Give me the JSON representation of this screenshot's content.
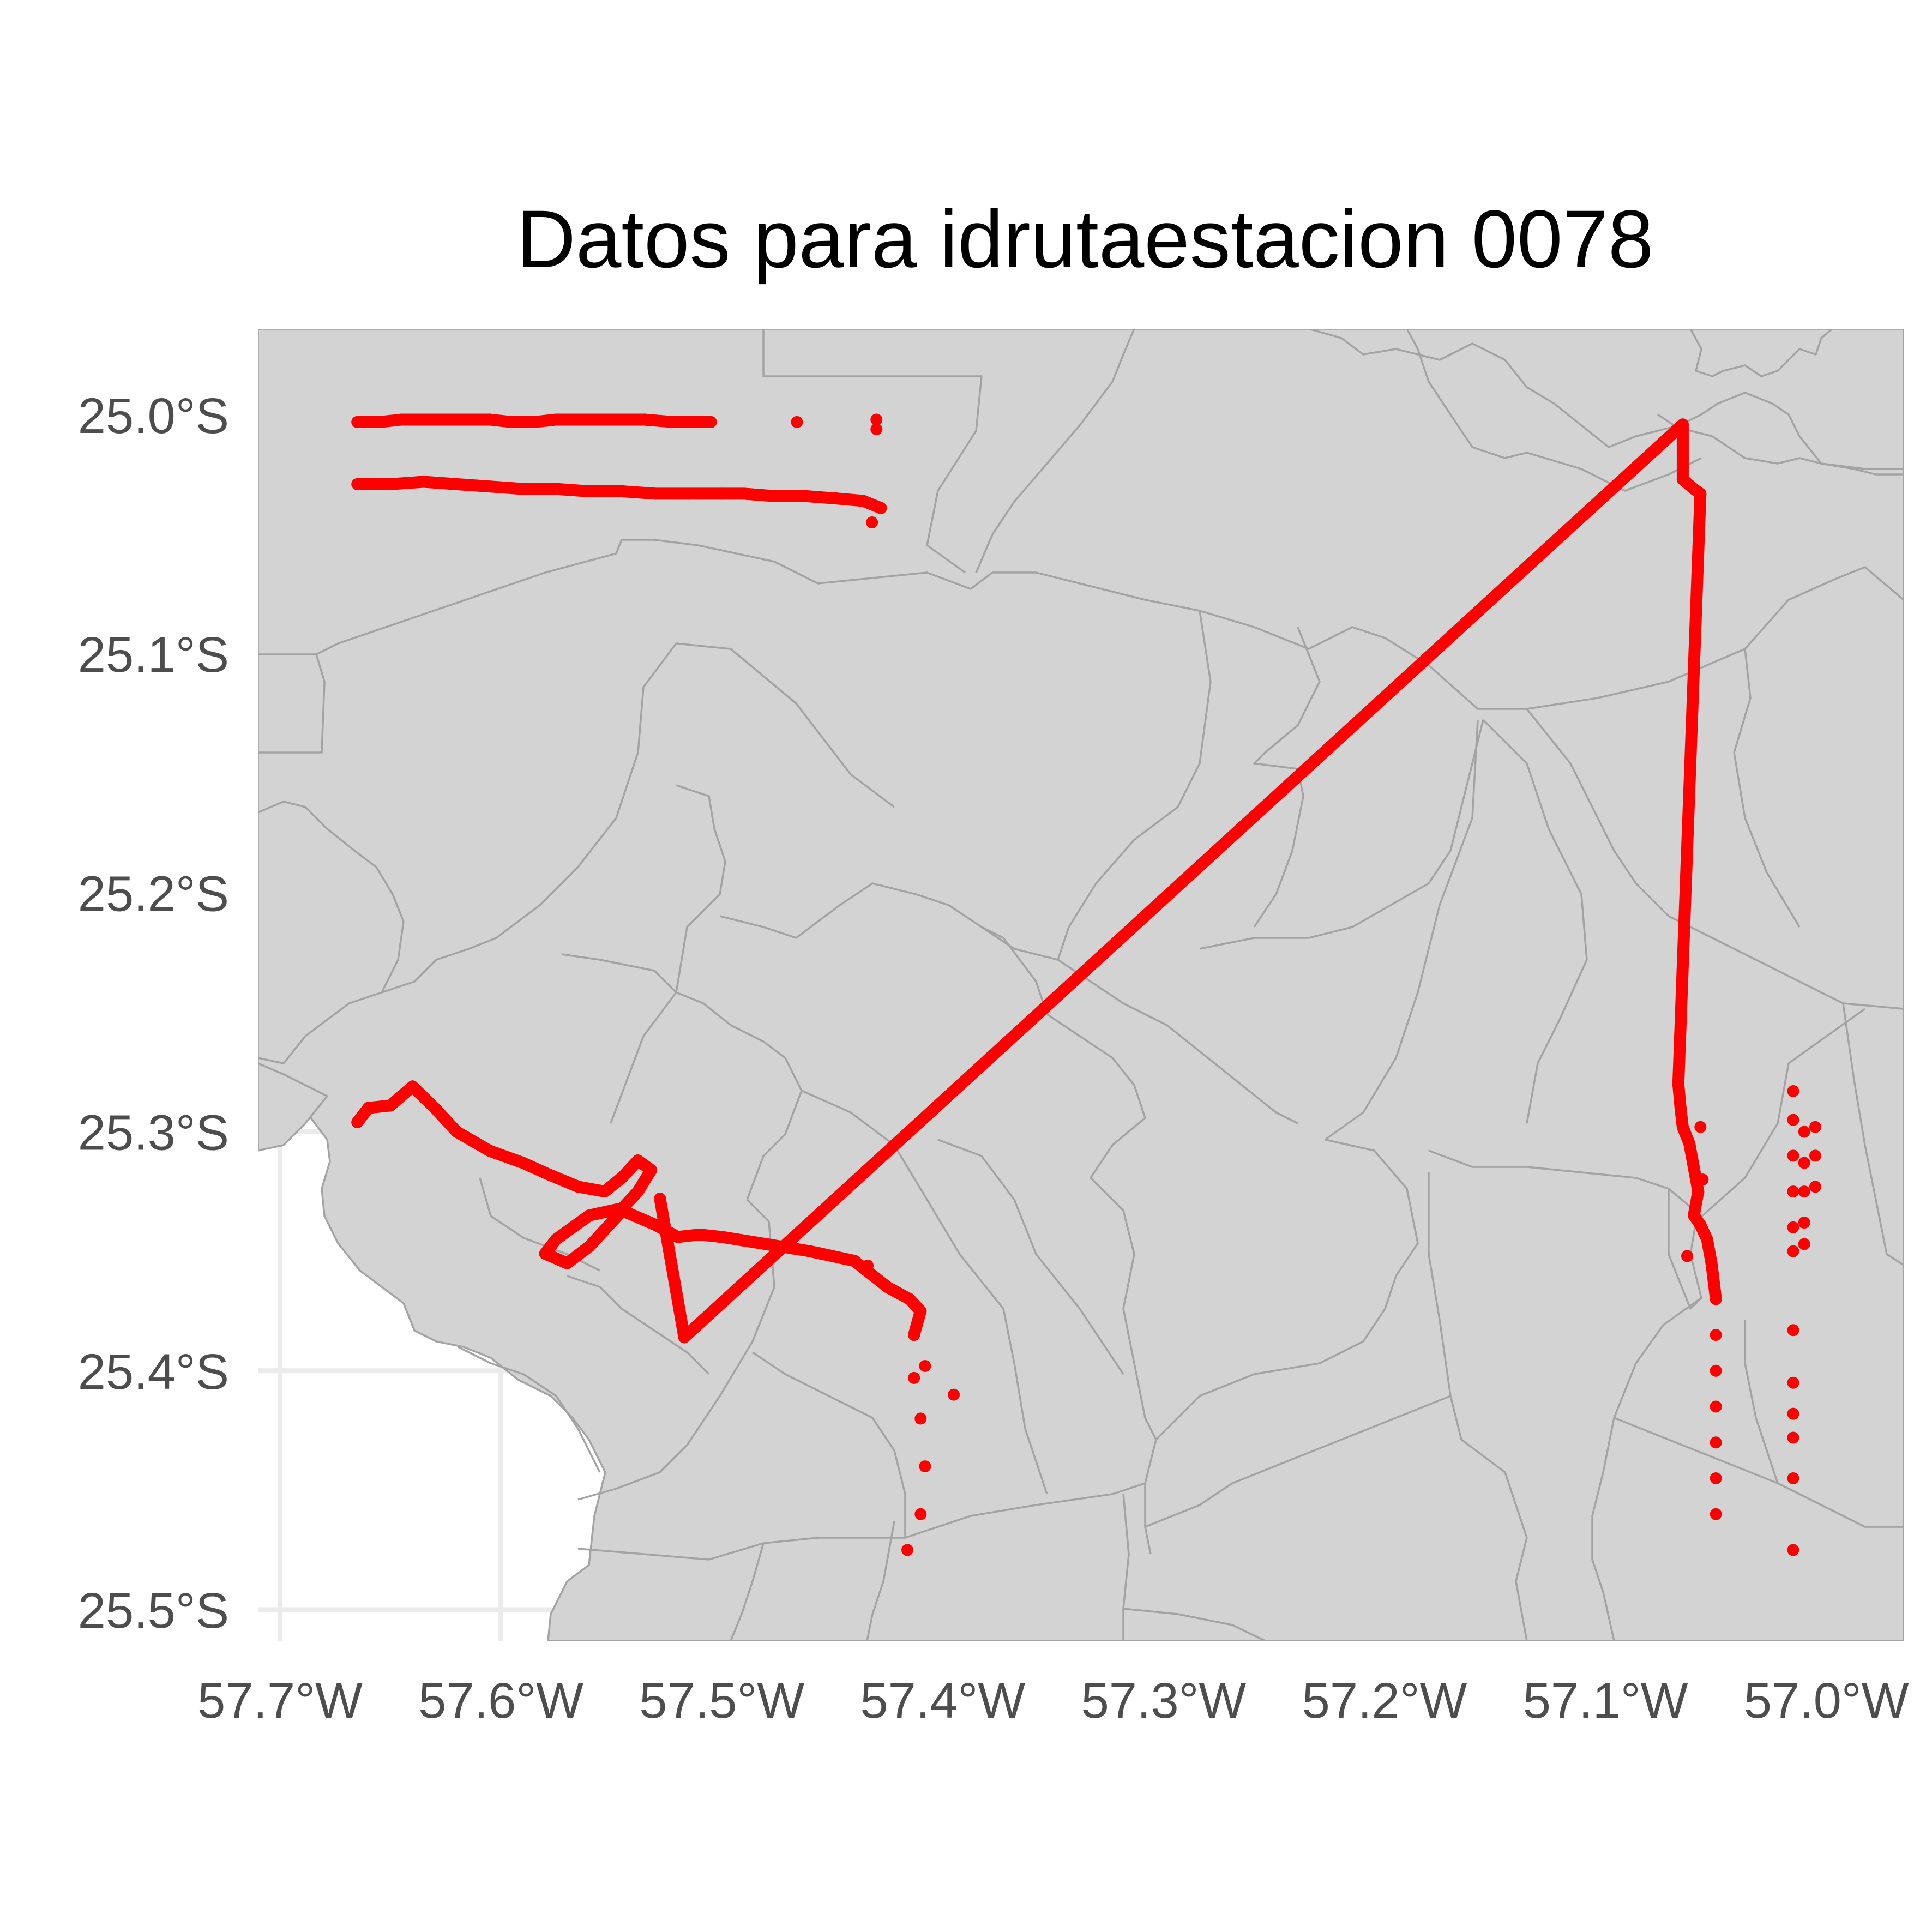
{
  "chart_data": {
    "type": "scatter",
    "title": "Datos para idrutaestacion 0078",
    "xlabel": "",
    "ylabel": "",
    "xlim": [
      -57.71,
      -56.965
    ],
    "ylim": [
      -25.513,
      -24.964
    ],
    "x_ticks": [
      -57.7,
      -57.6,
      -57.5,
      -57.4,
      -57.3,
      -57.2,
      -57.1,
      -57.0
    ],
    "x_tick_labels": [
      "57.7°W",
      "57.6°W",
      "57.5°W",
      "57.4°W",
      "57.3°W",
      "57.2°W",
      "57.1°W",
      "57.0°W"
    ],
    "y_ticks": [
      -25.0,
      -25.1,
      -25.2,
      -25.3,
      -25.4,
      -25.5
    ],
    "y_tick_labels": [
      "25.0°S",
      "25.1°S",
      "25.2°S",
      "25.3°S",
      "25.4°S",
      "25.5°S"
    ],
    "grid": true,
    "basemap": "administrative boundaries (grey fill)",
    "point_color": "#ff0000",
    "land_color": "#d3d3d3",
    "boundary_color": "#a3a3a3",
    "series": [
      {
        "points": [
          [
            -57.665,
            -25.003
          ],
          [
            -57.655,
            -25.003
          ],
          [
            -57.645,
            -25.002
          ],
          [
            -57.635,
            -25.002
          ],
          [
            -57.625,
            -25.002
          ],
          [
            -57.615,
            -25.002
          ],
          [
            -57.605,
            -25.002
          ],
          [
            -57.595,
            -25.003
          ],
          [
            -57.585,
            -25.003
          ],
          [
            -57.575,
            -25.002
          ],
          [
            -57.565,
            -25.002
          ],
          [
            -57.555,
            -25.002
          ],
          [
            -57.545,
            -25.002
          ],
          [
            -57.535,
            -25.002
          ],
          [
            -57.522,
            -25.003
          ],
          [
            -57.505,
            -25.003
          ],
          [
            -57.466,
            -25.003
          ],
          [
            -57.43,
            -25.002
          ],
          [
            -57.43,
            -25.006
          ],
          [
            -57.665,
            -25.029
          ],
          [
            -57.65,
            -25.029
          ],
          [
            -57.635,
            -25.028
          ],
          [
            -57.62,
            -25.029
          ],
          [
            -57.605,
            -25.03
          ],
          [
            -57.59,
            -25.031
          ],
          [
            -57.575,
            -25.031
          ],
          [
            -57.56,
            -25.032
          ],
          [
            -57.545,
            -25.032
          ],
          [
            -57.53,
            -25.033
          ],
          [
            -57.515,
            -25.033
          ],
          [
            -57.5,
            -25.033
          ],
          [
            -57.49,
            -25.033
          ],
          [
            -57.476,
            -25.034
          ],
          [
            -57.462,
            -25.034
          ],
          [
            -57.448,
            -25.035
          ],
          [
            -57.436,
            -25.036
          ],
          [
            -57.428,
            -25.039
          ],
          [
            -57.432,
            -25.045
          ],
          [
            -57.665,
            -25.296
          ],
          [
            -57.66,
            -25.29
          ],
          [
            -57.65,
            -25.289
          ],
          [
            -57.64,
            -25.281
          ],
          [
            -57.63,
            -25.29
          ],
          [
            -57.62,
            -25.3
          ],
          [
            -57.605,
            -25.308
          ],
          [
            -57.59,
            -25.313
          ],
          [
            -57.578,
            -25.318
          ],
          [
            -57.565,
            -25.323
          ],
          [
            -57.553,
            -25.325
          ],
          [
            -57.545,
            -25.319
          ],
          [
            -57.538,
            -25.312
          ],
          [
            -57.532,
            -25.316
          ],
          [
            -57.538,
            -25.325
          ],
          [
            -57.545,
            -25.332
          ],
          [
            -57.56,
            -25.335
          ],
          [
            -57.575,
            -25.345
          ],
          [
            -57.58,
            -25.351
          ],
          [
            -57.57,
            -25.355
          ],
          [
            -57.56,
            -25.348
          ],
          [
            -57.552,
            -25.34
          ],
          [
            -57.545,
            -25.333
          ],
          [
            -57.53,
            -25.339
          ],
          [
            -57.52,
            -25.344
          ],
          [
            -57.51,
            -25.343
          ],
          [
            -57.5,
            -25.344
          ],
          [
            -57.48,
            -25.347
          ],
          [
            -57.46,
            -25.35
          ],
          [
            -57.44,
            -25.354
          ],
          [
            -57.425,
            -25.365
          ],
          [
            -57.415,
            -25.37
          ],
          [
            -57.41,
            -25.375
          ],
          [
            -57.413,
            -25.385
          ],
          [
            -57.408,
            -25.398
          ],
          [
            -57.395,
            -25.41
          ],
          [
            -57.413,
            -25.403
          ],
          [
            -57.41,
            -25.42
          ],
          [
            -57.408,
            -25.44
          ],
          [
            -57.41,
            -25.46
          ],
          [
            -57.416,
            -25.475
          ],
          [
            -57.434,
            -25.356
          ],
          [
            -57.528,
            -25.328
          ],
          [
            -57.517,
            -25.386
          ],
          [
            -57.065,
            -25.004
          ],
          [
            -57.065,
            -25.027
          ],
          [
            -57.06,
            -25.031
          ],
          [
            -57.057,
            -25.033
          ],
          [
            -57.067,
            -25.28
          ],
          [
            -57.066,
            -25.29
          ],
          [
            -57.065,
            -25.298
          ],
          [
            -57.062,
            -25.305
          ],
          [
            -57.06,
            -25.315
          ],
          [
            -57.058,
            -25.325
          ],
          [
            -57.06,
            -25.335
          ],
          [
            -57.057,
            -25.339
          ],
          [
            -57.054,
            -25.345
          ],
          [
            -57.052,
            -25.355
          ],
          [
            -57.05,
            -25.37
          ],
          [
            -57.05,
            -25.385
          ],
          [
            -57.05,
            -25.4
          ],
          [
            -57.05,
            -25.415
          ],
          [
            -57.05,
            -25.43
          ],
          [
            -57.05,
            -25.445
          ],
          [
            -57.05,
            -25.46
          ],
          [
            -57.063,
            -25.352
          ],
          [
            -57.057,
            -25.298
          ],
          [
            -57.056,
            -25.32
          ],
          [
            -57.015,
            -25.283
          ],
          [
            -57.015,
            -25.295
          ],
          [
            -57.015,
            -25.31
          ],
          [
            -57.015,
            -25.325
          ],
          [
            -57.015,
            -25.34
          ],
          [
            -57.015,
            -25.35
          ],
          [
            -57.015,
            -25.383
          ],
          [
            -57.015,
            -25.405
          ],
          [
            -57.015,
            -25.418
          ],
          [
            -57.015,
            -25.428
          ],
          [
            -57.015,
            -25.445
          ],
          [
            -57.015,
            -25.475
          ],
          [
            -57.01,
            -25.3
          ],
          [
            -57.01,
            -25.313
          ],
          [
            -57.01,
            -25.325
          ],
          [
            -57.01,
            -25.338
          ],
          [
            -57.01,
            -25.347
          ],
          [
            -57.005,
            -25.298
          ],
          [
            -57.005,
            -25.31
          ],
          [
            -57.005,
            -25.323
          ]
        ]
      }
    ]
  }
}
